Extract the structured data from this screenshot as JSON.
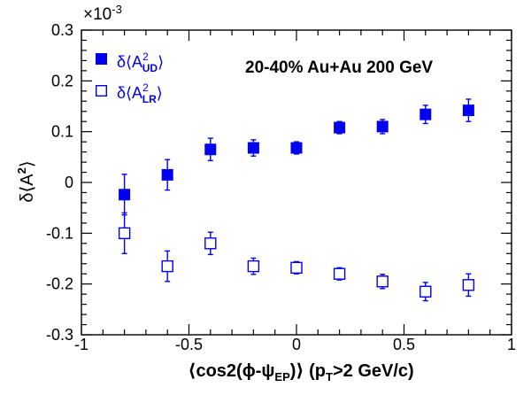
{
  "chart_data": {
    "type": "scatter",
    "annotation": "20-40% Au+Au 200 GeV",
    "xlabel": {
      "open": "⟨cos2(ϕ-ψ",
      "sub": "EP",
      "close": ")⟩ (p",
      "sub2": "T",
      "rest": ">2 GeV/c)"
    },
    "ylabel": {
      "prefix": "δ⟨A",
      "sup": "2",
      "suffix": "⟩"
    },
    "y_multiplier": "×10",
    "y_multiplier_exp": "-3",
    "xlim": [
      -1,
      1
    ],
    "ylim": [
      -0.3,
      0.3
    ],
    "x_ticks": [
      "-1",
      "-0.5",
      "0",
      "0.5",
      "1"
    ],
    "y_ticks": [
      "-0.3",
      "-0.2",
      "-0.1",
      "0",
      "0.1",
      "0.2",
      "0.3"
    ],
    "series": [
      {
        "legend": {
          "prefix": "δ⟨A",
          "sup": "2",
          "sub": "UD",
          "suffix": "⟩"
        },
        "color": "#0000ee",
        "marker": "filled-square",
        "x": [
          -0.8,
          -0.6,
          -0.4,
          -0.2,
          0.0,
          0.2,
          0.4,
          0.6,
          0.8
        ],
        "y": [
          -0.024,
          0.015,
          0.065,
          0.068,
          0.068,
          0.108,
          0.11,
          0.134,
          0.142
        ],
        "yerr": [
          0.04,
          0.03,
          0.022,
          0.016,
          0.012,
          0.012,
          0.014,
          0.018,
          0.022
        ]
      },
      {
        "legend": {
          "prefix": "δ⟨A",
          "sup": "2",
          "sub": "LR",
          "suffix": "⟩"
        },
        "color": "#0000ee",
        "marker": "open-square",
        "x": [
          -0.8,
          -0.6,
          -0.4,
          -0.2,
          0.0,
          0.2,
          0.4,
          0.6,
          0.8
        ],
        "y": [
          -0.1,
          -0.165,
          -0.12,
          -0.165,
          -0.168,
          -0.18,
          -0.195,
          -0.215,
          -0.202
        ],
        "yerr": [
          0.04,
          0.03,
          0.022,
          0.016,
          0.012,
          0.012,
          0.014,
          0.018,
          0.022
        ]
      }
    ]
  }
}
